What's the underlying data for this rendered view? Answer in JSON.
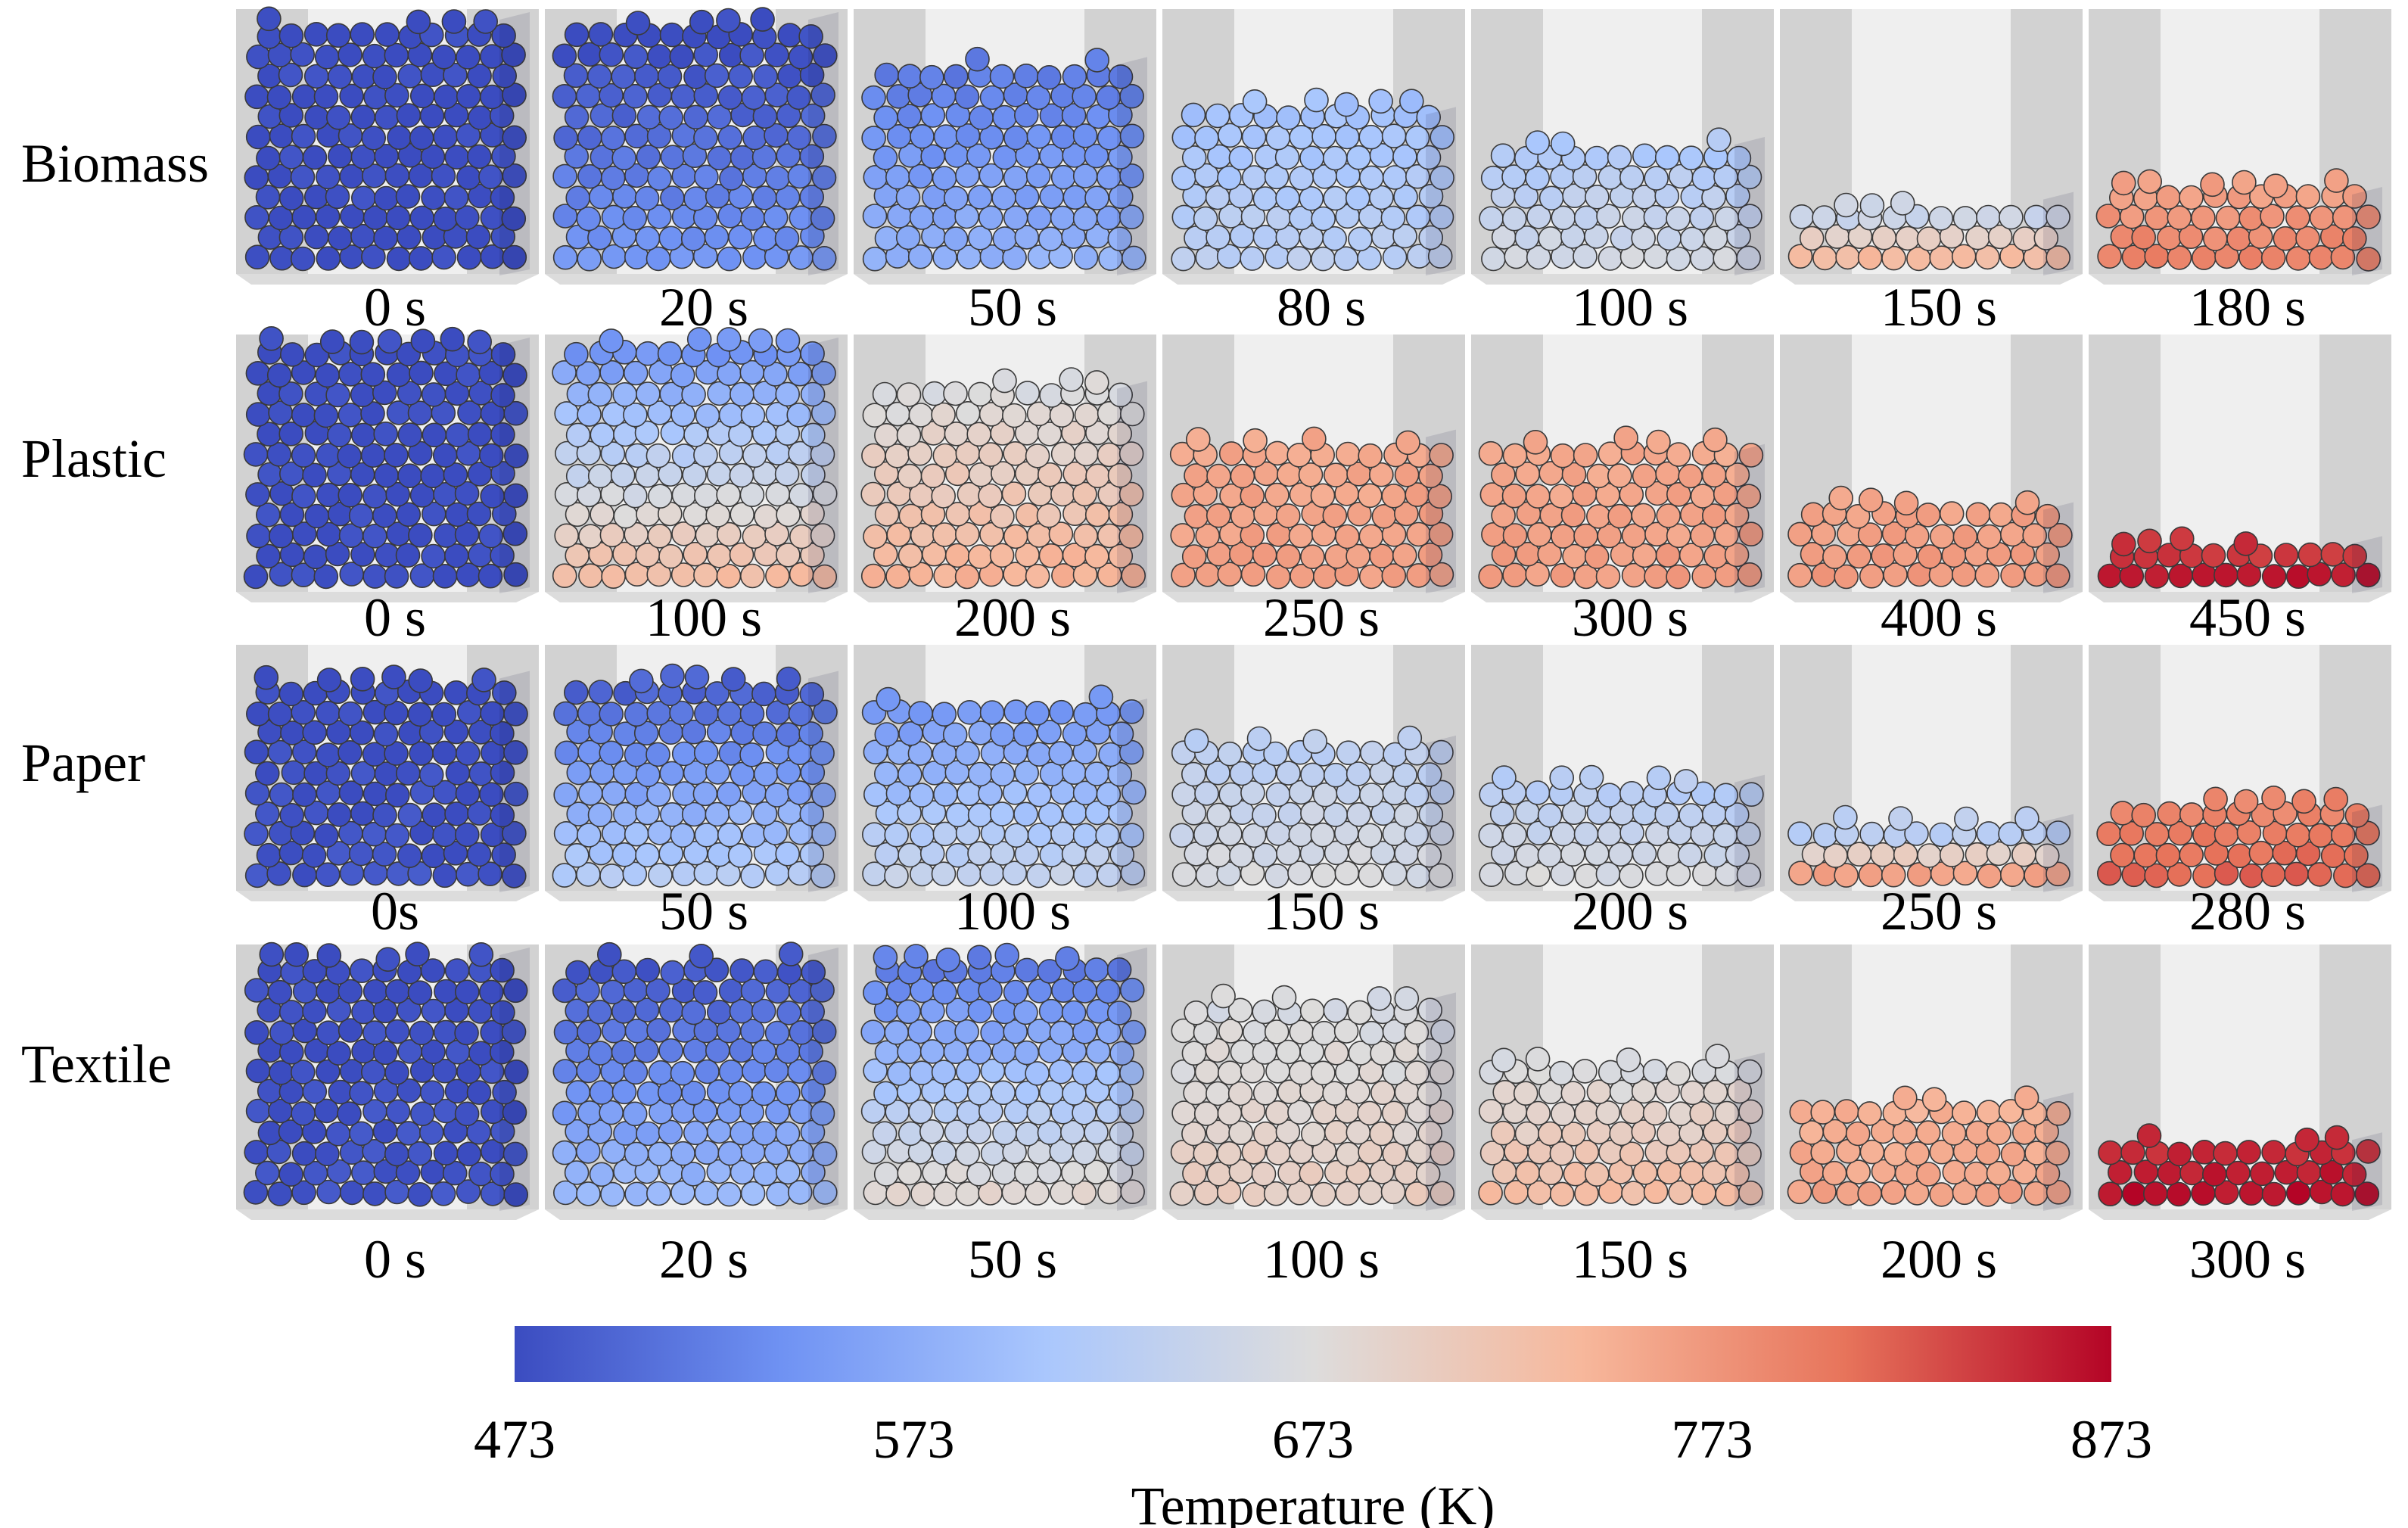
{
  "rows": [
    {
      "label": "Biomass",
      "times": [
        "0 s",
        "20 s",
        "50 s",
        "80 s",
        "100 s",
        "150 s",
        "180 s"
      ],
      "heights": [
        1.0,
        1.0,
        0.82,
        0.62,
        0.5,
        0.28,
        0.3
      ],
      "temps": [
        [
          473,
          473
        ],
        [
          473,
          545
        ],
        [
          520,
          580
        ],
        [
          600,
          630
        ],
        [
          615,
          660
        ],
        [
          650,
          735
        ],
        [
          765,
          795
        ]
      ]
    },
    {
      "label": "Plastic",
      "times": [
        "0 s",
        "100 s",
        "200 s",
        "250 s",
        "300 s",
        "400 s",
        "450 s"
      ],
      "heights": [
        1.0,
        1.0,
        0.82,
        0.62,
        0.56,
        0.32,
        0.18
      ],
      "temps": [
        [
          473,
          473
        ],
        [
          545,
          730
        ],
        [
          670,
          745
        ],
        [
          755,
          765
        ],
        [
          755,
          765
        ],
        [
          760,
          770
        ],
        [
          845,
          860
        ]
      ]
    },
    {
      "label": "Paper",
      "times": [
        "0s",
        "50 s",
        "100 s",
        "150 s",
        "200 s",
        "250 s",
        "280 s"
      ],
      "heights": [
        0.9,
        0.9,
        0.78,
        0.62,
        0.45,
        0.28,
        0.32
      ],
      "temps": [
        [
          473,
          480
        ],
        [
          495,
          620
        ],
        [
          550,
          640
        ],
        [
          630,
          665
        ],
        [
          625,
          665
        ],
        [
          630,
          760
        ],
        [
          790,
          815
        ]
      ]
    },
    {
      "label": "Textile",
      "times": [
        "0 s",
        "20 s",
        "50 s",
        "100 s",
        "150 s",
        "200 s",
        "300 s"
      ],
      "heights": [
        1.0,
        1.0,
        1.0,
        0.82,
        0.58,
        0.42,
        0.26
      ],
      "temps": [
        [
          473,
          480
        ],
        [
          485,
          590
        ],
        [
          520,
          685
        ],
        [
          665,
          700
        ],
        [
          670,
          730
        ],
        [
          745,
          760
        ],
        [
          850,
          865
        ]
      ]
    }
  ],
  "colorbar": {
    "title": "Temperature (K)",
    "ticks": [
      "473",
      "573",
      "673",
      "773",
      "873"
    ],
    "min": 473,
    "max": 873,
    "stops": [
      "#3b4cc0",
      "#6f92f3",
      "#aac7fd",
      "#dddcdc",
      "#f7b89c",
      "#e7745b",
      "#b40426"
    ]
  }
}
